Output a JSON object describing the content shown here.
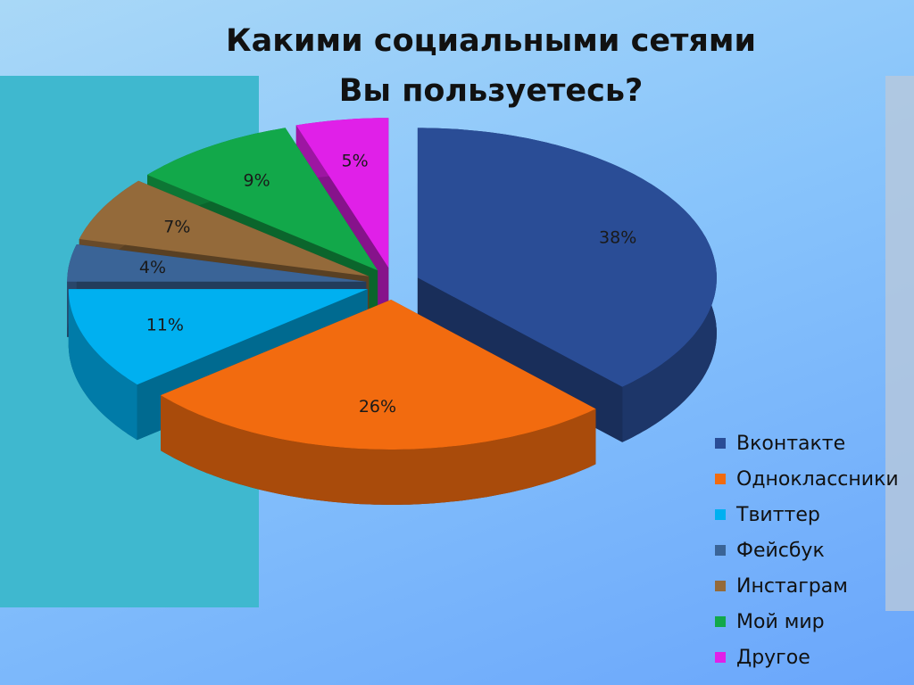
{
  "chart_data": {
    "type": "pie",
    "title": "Какими социальными сетями Вы пользуетесь?",
    "categories": [
      "Вконтакте",
      "Одноклассники",
      "Твиттер",
      "Фейсбук",
      "Инстаграм",
      "Мой мир",
      "Другое"
    ],
    "values": [
      38,
      26,
      11,
      4,
      7,
      9,
      5
    ],
    "value_labels": [
      "38%",
      "26%",
      "11%",
      "4%",
      "7%",
      "9%",
      "5%"
    ],
    "colors": [
      "#2a4d96",
      "#f26b0f",
      "#00b0f0",
      "#3a6497",
      "#946a3a",
      "#12a84a",
      "#e020e8"
    ],
    "legend": "right"
  }
}
